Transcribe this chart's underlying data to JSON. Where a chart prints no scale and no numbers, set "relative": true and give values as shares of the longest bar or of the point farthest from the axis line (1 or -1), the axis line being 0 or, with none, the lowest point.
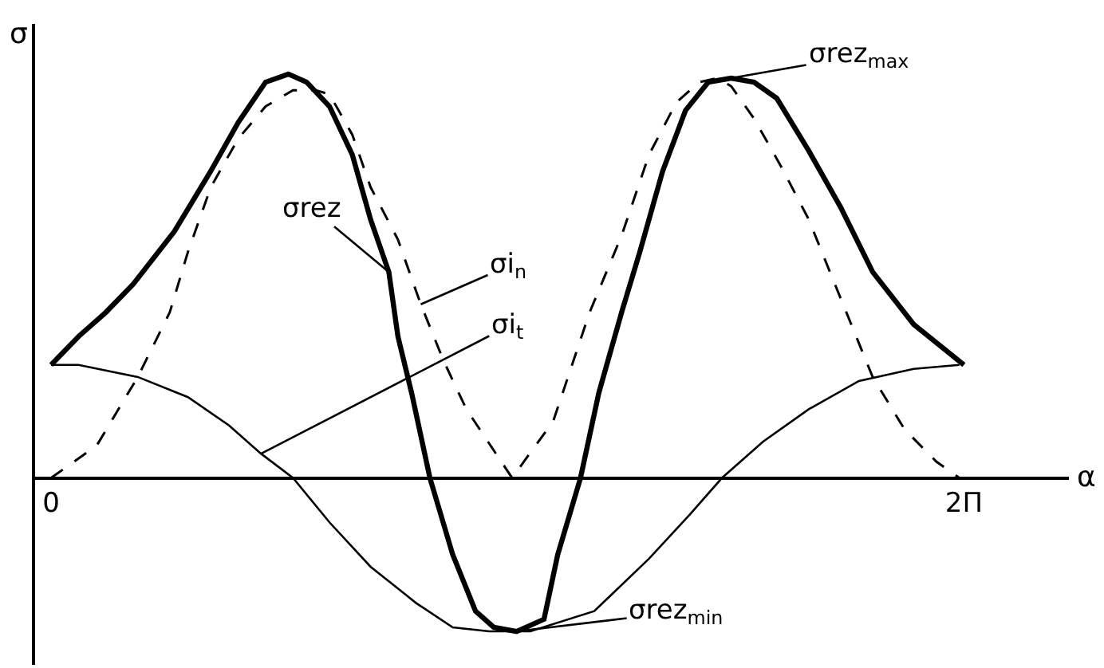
{
  "chart_data": {
    "type": "line",
    "xlabel": "α",
    "ylabel": "σ",
    "relative": true,
    "legend": false,
    "xlim": [
      -0.035,
      2.23
    ],
    "xticks": [
      0,
      {
        "value": 2,
        "label": "2Π"
      }
    ],
    "series": [
      {
        "name": "σrez",
        "color": "#000000",
        "line_style": "solid",
        "x": [
          0,
          0.06,
          0.12,
          0.18,
          0.27,
          0.35,
          0.41,
          0.47,
          0.52,
          0.56,
          0.61,
          0.66,
          0.7,
          0.74,
          0.76,
          0.79,
          0.83,
          0.88,
          0.93,
          0.97,
          1.02,
          1.08,
          1.11,
          1.16,
          1.2,
          1.25,
          1.29,
          1.34,
          1.39,
          1.44,
          1.49,
          1.54,
          1.59,
          1.66,
          1.73,
          1.8,
          1.89,
          2.0
        ],
        "values": [
          0.28,
          0.35,
          0.41,
          0.48,
          0.61,
          0.76,
          0.88,
          0.98,
          1.0,
          0.98,
          0.92,
          0.8,
          0.64,
          0.51,
          0.35,
          0.21,
          0,
          -0.19,
          -0.33,
          -0.37,
          -0.38,
          -0.35,
          -0.19,
          0,
          0.21,
          0.41,
          0.56,
          0.76,
          0.91,
          0.98,
          0.99,
          0.98,
          0.94,
          0.81,
          0.67,
          0.51,
          0.38,
          0.28
        ]
      },
      {
        "name": "σi$_{n}$",
        "color": "#000000",
        "line_style": "dashed",
        "x": [
          0,
          0.1,
          0.19,
          0.26,
          0.3,
          0.35,
          0.41,
          0.47,
          0.53,
          0.58,
          0.61,
          0.66,
          0.7,
          0.76,
          0.81,
          0.86,
          0.91,
          1.01,
          1.1,
          1.18,
          1.25,
          1.31,
          1.37,
          1.42,
          1.46,
          1.49,
          1.54,
          1.6,
          1.66,
          1.71,
          1.8,
          1.87,
          1.94,
          1.99
        ],
        "values": [
          0,
          0.08,
          0.25,
          0.41,
          0.56,
          0.72,
          0.84,
          0.92,
          0.96,
          0.96,
          0.95,
          0.85,
          0.72,
          0.59,
          0.43,
          0.29,
          0.17,
          0,
          0.14,
          0.41,
          0.6,
          0.8,
          0.93,
          0.98,
          0.99,
          0.97,
          0.89,
          0.77,
          0.64,
          0.5,
          0.25,
          0.12,
          0.04,
          0
        ]
      },
      {
        "name": "σi$_{t}$",
        "color": "#000000",
        "line_style": "solid",
        "x": [
          0,
          0.06,
          0.19,
          0.3,
          0.39,
          0.46,
          0.53,
          0.61,
          0.7,
          0.8,
          0.88,
          0.96,
          1.05,
          1.19,
          1.31,
          1.4,
          1.47,
          1.56,
          1.66,
          1.77,
          1.89,
          1.99
        ],
        "values": [
          0.28,
          0.28,
          0.25,
          0.2,
          0.13,
          0.06,
          0,
          -0.11,
          -0.22,
          -0.31,
          -0.37,
          -0.38,
          -0.38,
          -0.33,
          -0.2,
          -0.09,
          0,
          0.09,
          0.17,
          0.24,
          0.27,
          0.28
        ]
      }
    ],
    "annotations": [
      {
        "text": "σrez$_{max}$",
        "x": 1.49,
        "y": 0.99
      },
      {
        "text": "σrez$_{min}$",
        "x": 1.02,
        "y": -0.38
      }
    ]
  }
}
